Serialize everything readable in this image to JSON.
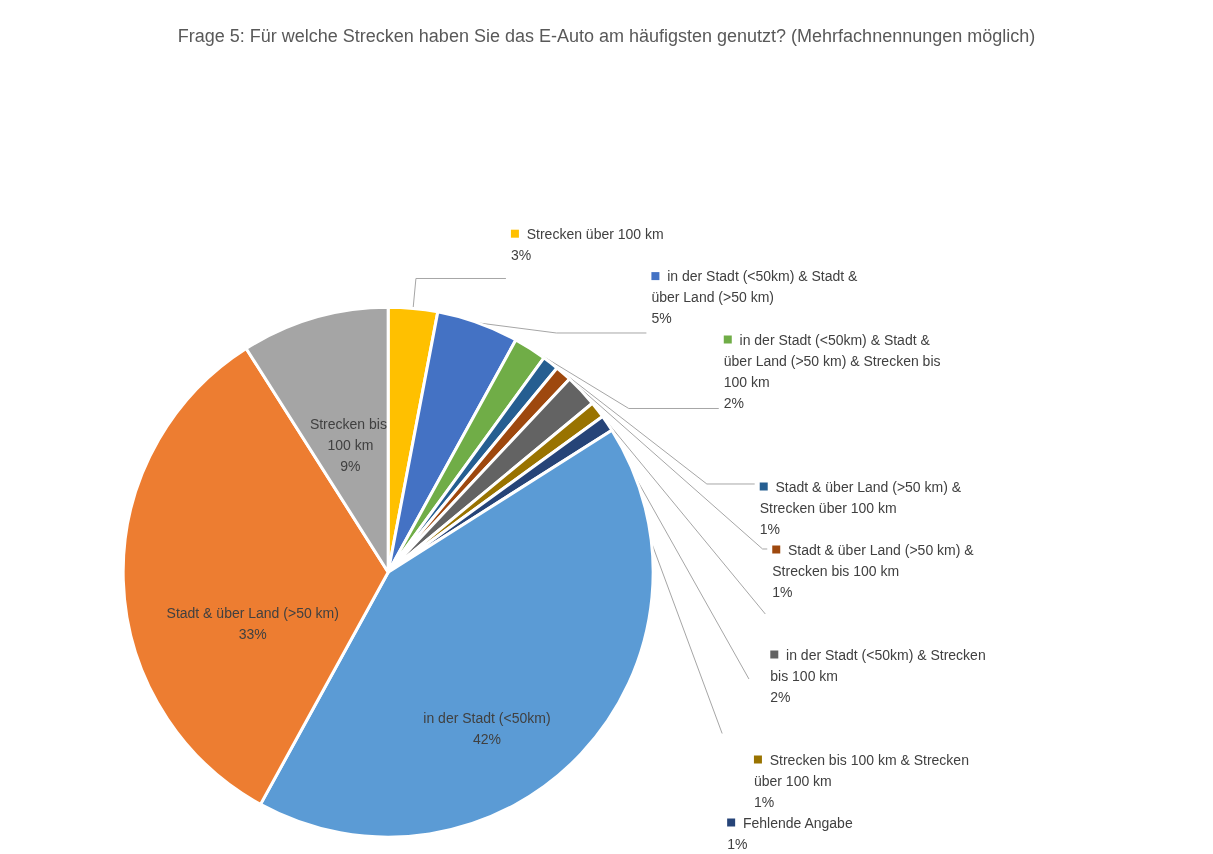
{
  "chart_data": {
    "type": "pie",
    "title": "Frage 5: Für welche Strecken haben Sie das E-Auto am häufigsten genutzt? (Mehrfachnennungen möglich)",
    "categories": [
      "Strecken über 100 km",
      "in der Stadt (<50km) & Stadt & über Land (>50 km)",
      "in der Stadt (<50km) & Stadt & über Land (>50 km) & Strecken bis 100 km",
      "Stadt & über Land (>50 km) & Strecken über 100 km",
      "Stadt & über Land (>50 km) & Strecken bis 100 km",
      "in der Stadt (<50km) & Strecken bis 100 km",
      "Strecken bis 100 km & Strecken über 100 km",
      "Fehlende Angabe",
      "in der Stadt (<50km)",
      "Stadt & über Land (>50 km)",
      "Strecken bis 100 km"
    ],
    "values": [
      3,
      5,
      2,
      1,
      1,
      2,
      1,
      1,
      42,
      33,
      9
    ],
    "colors": [
      "#ffc000",
      "#4472c4",
      "#70ad47",
      "#255e91",
      "#9e480e",
      "#636363",
      "#997300",
      "#264478",
      "#5b9bd5",
      "#ed7d31",
      "#a5a5a5"
    ],
    "value_labels": [
      "3%",
      "5%",
      "2%",
      "1%",
      "1%",
      "2%",
      "1%",
      "1%",
      "42%",
      "33%",
      "9%"
    ],
    "legend": "right"
  }
}
